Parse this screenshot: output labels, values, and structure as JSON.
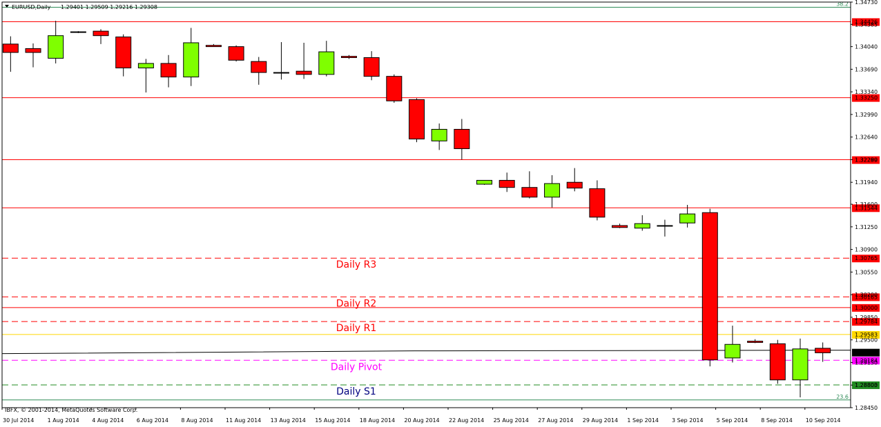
{
  "header": {
    "symbol": "EURUSD,Daily",
    "ohlc": "1.29401 1.29509 1.29216 1.29308"
  },
  "copyright": "IBFX, © 2001-2014, MetaQuotes Software Corp.",
  "fib_top_label": "38.2",
  "fib_bottom_label": "23.6",
  "colors": {
    "bull": "#7fff00",
    "bear": "#ff0000",
    "resistance": "#ff0000",
    "pivot": "#ff00ff",
    "support": "#228b22",
    "gold": "#ffd700",
    "fib": "#2e8b57",
    "current": "#000000"
  },
  "chart_data": {
    "type": "candlestick",
    "title": "EURUSD,Daily",
    "ylim": [
      1.2845,
      1.3475
    ],
    "y_ticks": [
      "1.34730",
      "1.34385",
      "1.34040",
      "1.33690",
      "1.33340",
      "1.32990",
      "1.32640",
      "1.32290",
      "1.31940",
      "1.31600",
      "1.31250",
      "1.30900",
      "1.30550",
      "1.30200",
      "1.29850",
      "1.29500",
      "1.29150",
      "1.28800",
      "1.28450"
    ],
    "x_labels": [
      "30 Jul 2014",
      "1 Aug 2014",
      "4 Aug 2014",
      "6 Aug 2014",
      "8 Aug 2014",
      "11 Aug 2014",
      "13 Aug 2014",
      "15 Aug 2014",
      "18 Aug 2014",
      "20 Aug 2014",
      "22 Aug 2014",
      "25 Aug 2014",
      "27 Aug 2014",
      "29 Aug 2014",
      "1 Sep 2014",
      "3 Sep 2014",
      "5 Sep 2014",
      "8 Sep 2014",
      "10 Sep 2014"
    ],
    "candles": [
      {
        "o": 1.3408,
        "h": 1.342,
        "l": 1.3365,
        "c": 1.3395
      },
      {
        "o": 1.3401,
        "h": 1.3409,
        "l": 1.3372,
        "c": 1.3395
      },
      {
        "o": 1.3386,
        "h": 1.3444,
        "l": 1.3378,
        "c": 1.3421
      },
      {
        "o": 1.3426,
        "h": 1.3428,
        "l": 1.3425,
        "c": 1.3427
      },
      {
        "o": 1.3428,
        "h": 1.3431,
        "l": 1.3408,
        "c": 1.3421
      },
      {
        "o": 1.3419,
        "h": 1.3423,
        "l": 1.3358,
        "c": 1.3371
      },
      {
        "o": 1.3371,
        "h": 1.3385,
        "l": 1.3333,
        "c": 1.3378
      },
      {
        "o": 1.3378,
        "h": 1.3391,
        "l": 1.3341,
        "c": 1.3357
      },
      {
        "o": 1.3357,
        "h": 1.3433,
        "l": 1.3343,
        "c": 1.341
      },
      {
        "o": 1.3406,
        "h": 1.3408,
        "l": 1.3406,
        "c": 1.3404
      },
      {
        "o": 1.3404,
        "h": 1.3406,
        "l": 1.3381,
        "c": 1.3383
      },
      {
        "o": 1.3381,
        "h": 1.3388,
        "l": 1.3345,
        "c": 1.3364
      },
      {
        "o": 1.3364,
        "h": 1.3411,
        "l": 1.3353,
        "c": 1.3363
      },
      {
        "o": 1.3366,
        "h": 1.341,
        "l": 1.3354,
        "c": 1.3361
      },
      {
        "o": 1.3361,
        "h": 1.3413,
        "l": 1.3358,
        "c": 1.3396
      },
      {
        "o": 1.3389,
        "h": 1.3391,
        "l": 1.3385,
        "c": 1.3387
      },
      {
        "o": 1.3387,
        "h": 1.3397,
        "l": 1.3352,
        "c": 1.3358
      },
      {
        "o": 1.3358,
        "h": 1.3361,
        "l": 1.3317,
        "c": 1.332
      },
      {
        "o": 1.3322,
        "h": 1.3324,
        "l": 1.3256,
        "c": 1.3261
      },
      {
        "o": 1.3258,
        "h": 1.3285,
        "l": 1.3244,
        "c": 1.3276
      },
      {
        "o": 1.3276,
        "h": 1.3292,
        "l": 1.3229,
        "c": 1.3246
      },
      {
        "o": 1.3191,
        "h": 1.3197,
        "l": 1.319,
        "c": 1.3197
      },
      {
        "o": 1.3197,
        "h": 1.3209,
        "l": 1.3179,
        "c": 1.3186
      },
      {
        "o": 1.3186,
        "h": 1.3211,
        "l": 1.3169,
        "c": 1.3171
      },
      {
        "o": 1.3171,
        "h": 1.3205,
        "l": 1.3155,
        "c": 1.3192
      },
      {
        "o": 1.3194,
        "h": 1.3216,
        "l": 1.318,
        "c": 1.3185
      },
      {
        "o": 1.3184,
        "h": 1.3197,
        "l": 1.3135,
        "c": 1.314
      },
      {
        "o": 1.3127,
        "h": 1.313,
        "l": 1.3123,
        "c": 1.3124
      },
      {
        "o": 1.3123,
        "h": 1.3143,
        "l": 1.3119,
        "c": 1.313
      },
      {
        "o": 1.3127,
        "h": 1.3136,
        "l": 1.311,
        "c": 1.3127
      },
      {
        "o": 1.3131,
        "h": 1.3159,
        "l": 1.3124,
        "c": 1.3145
      },
      {
        "o": 1.3147,
        "h": 1.3153,
        "l": 1.2909,
        "c": 1.2919
      },
      {
        "o": 1.2922,
        "h": 1.2972,
        "l": 1.2915,
        "c": 1.2943
      },
      {
        "o": 1.2948,
        "h": 1.2951,
        "l": 1.2945,
        "c": 1.2946
      },
      {
        "o": 1.2944,
        "h": 1.295,
        "l": 1.2882,
        "c": 1.2888
      },
      {
        "o": 1.2888,
        "h": 1.2952,
        "l": 1.2861,
        "c": 1.2936
      },
      {
        "o": 1.2937,
        "h": 1.2946,
        "l": 1.2916,
        "c": 1.293
      }
    ],
    "levels": [
      {
        "price": 1.34426,
        "label": "1.34426",
        "style": "solid",
        "color": "#ff0000"
      },
      {
        "price": 1.3325,
        "label": "1.33250",
        "style": "solid",
        "color": "#ff0000"
      },
      {
        "price": 1.32289,
        "label": "1.32289",
        "style": "solid",
        "color": "#ff0000"
      },
      {
        "price": 1.31544,
        "label": "1.31544",
        "style": "solid",
        "color": "#ff0000"
      },
      {
        "price": 1.30765,
        "label": "1.30765",
        "style": "dashed",
        "color": "#ff0000",
        "name": "Daily R3"
      },
      {
        "price": 1.30165,
        "label": "1.30165",
        "style": "dashed",
        "color": "#ff0000",
        "name": "Daily R2"
      },
      {
        "price": 1.3,
        "label": "1.30000",
        "style": "solid",
        "color": "#ff0000"
      },
      {
        "price": 1.29784,
        "label": "1.29784",
        "style": "dashed",
        "color": "#ff0000",
        "name": "Daily R1"
      },
      {
        "price": 1.29583,
        "label": "1.29583",
        "style": "solid",
        "color": "#ffd700"
      },
      {
        "price": 1.29184,
        "label": "1.29184",
        "style": "dashed",
        "color": "#ff00ff",
        "name": "Daily Pivot"
      },
      {
        "price": 1.28803,
        "label": "1.28803",
        "style": "dashed",
        "color": "#228b22",
        "name": "Daily S1"
      }
    ],
    "current_price": {
      "price": 1.29308,
      "label": "1.29308"
    },
    "fib_top_price": 1.3465,
    "fib_bottom_price": 1.2857
  }
}
